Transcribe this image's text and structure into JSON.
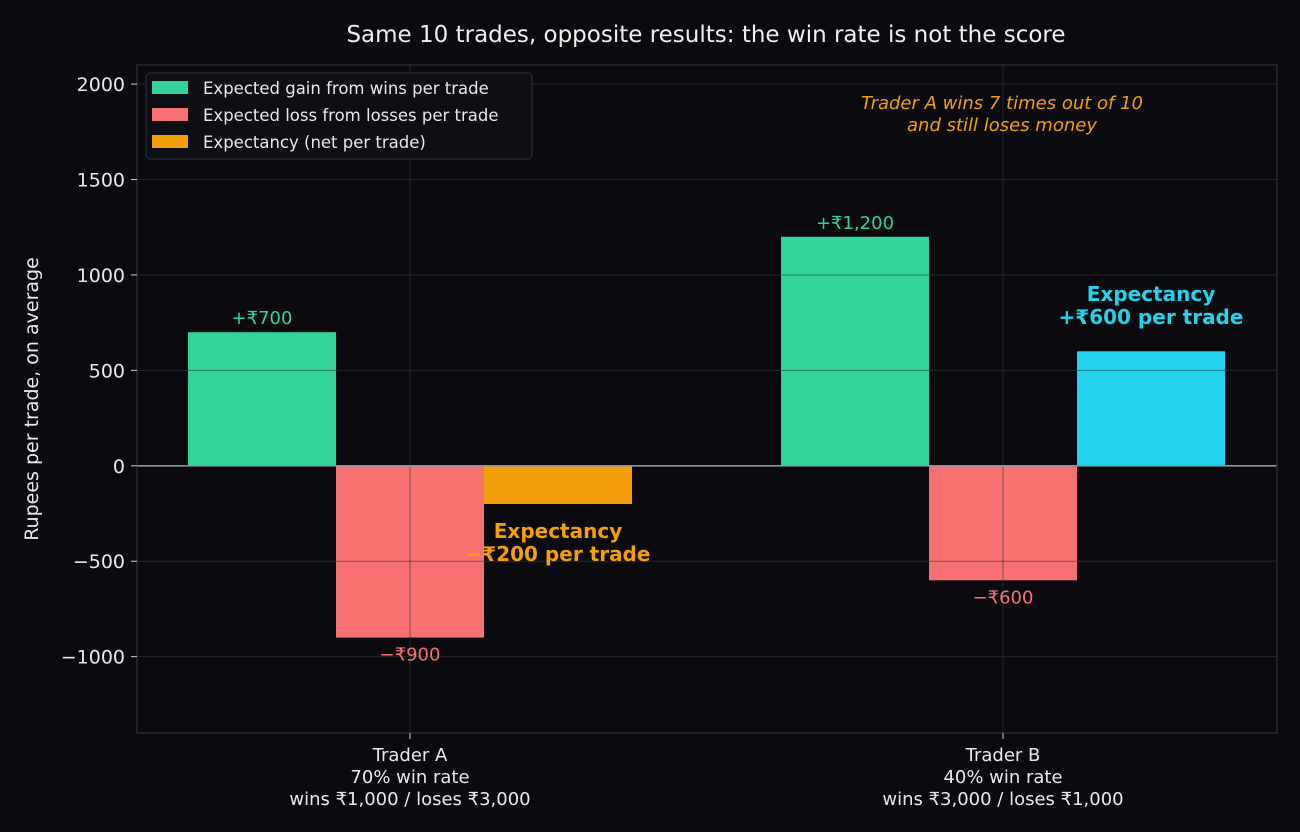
{
  "colors": {
    "background": "#0b0b0f",
    "gain": "#34d399",
    "loss": "#f87171",
    "expectancy_negative": "#f59e0b",
    "expectancy_positive": "#22d3ee",
    "annotation": "#f59e0b",
    "grid": "#1f2530",
    "zero_line": "#8a94a6"
  },
  "chart_data": {
    "type": "bar",
    "title": "Same 10 trades, opposite results: the win rate is not the score",
    "ylabel": "Rupees per trade, on average",
    "xlabel": "",
    "ylim": [
      -1400,
      2100
    ],
    "yticks": [
      2000,
      1500,
      1000,
      500,
      0,
      -500,
      -1000
    ],
    "ytick_labels": [
      "2000",
      "1500",
      "1000",
      "500",
      "0",
      "−500",
      "−1000"
    ],
    "grid": true,
    "legend_position": "top-left",
    "categories": [
      [
        "Trader A",
        "70% win rate",
        "wins ₹1,000 / loses ₹3,000"
      ],
      [
        "Trader B",
        "40% win rate",
        "wins ₹3,000 / loses ₹1,000"
      ]
    ],
    "series": [
      {
        "name": "Expected gain from wins per trade",
        "values": [
          700,
          1200
        ],
        "labels": [
          "+₹700",
          "+₹1,200"
        ]
      },
      {
        "name": "Expected loss from losses per trade",
        "values": [
          -900,
          -600
        ],
        "labels": [
          "−₹900",
          "−₹600"
        ]
      },
      {
        "name": "Expectancy (net per trade)",
        "values": [
          -200,
          600
        ]
      }
    ],
    "expectancy_labels": [
      [
        "Expectancy",
        "−₹200 per trade"
      ],
      [
        "Expectancy",
        "+₹600 per trade"
      ]
    ],
    "annotation": [
      "Trader A wins 7 times out of 10",
      "and still loses money"
    ]
  }
}
